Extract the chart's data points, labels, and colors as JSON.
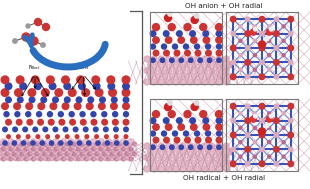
{
  "title_top": "OH anion + OH radial",
  "title_bottom": "OH radical + OH radial",
  "bg_color": "#ffffff",
  "fig_width": 3.1,
  "fig_height": 1.89,
  "dpi": 100,
  "bracket_color": "#555555",
  "arrow_color": "#2A6FBF",
  "surface_red": "#CC3333",
  "surface_blue": "#3344AA",
  "surface_pink": "#CC88AA",
  "surface_light_pink": "#DDAABB",
  "oh_red": "#CC2222",
  "oh_white": "#E8E8E8",
  "oh_gray": "#AAAAAA",
  "bond_color": "#3355BB",
  "lattice_pink": "#CC88AA",
  "lattice_blue": "#3355BB"
}
